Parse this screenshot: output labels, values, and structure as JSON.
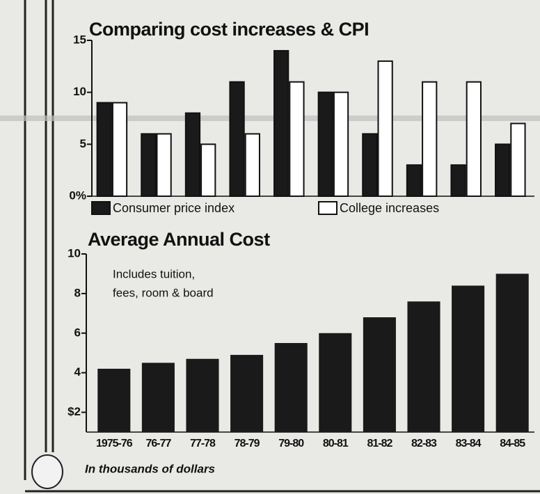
{
  "chart_data": [
    {
      "type": "bar",
      "title": "Comparing cost increases & CPI",
      "categories": [
        null,
        null,
        null,
        null,
        null,
        null,
        null,
        null,
        null,
        null
      ],
      "series": [
        {
          "name": "Consumer price index",
          "color": "#1a1a1a",
          "values": [
            9,
            6,
            8,
            11,
            14,
            10,
            6,
            3,
            3,
            5
          ]
        },
        {
          "name": "College increases",
          "color": "#ffffff",
          "values": [
            9,
            6,
            5,
            6,
            11,
            10,
            13,
            11,
            11,
            7
          ]
        }
      ],
      "ylim": [
        0,
        15
      ],
      "yticks": [
        {
          "value": 0,
          "label": "0%"
        },
        5,
        10,
        15
      ],
      "legend": "bottom",
      "grid": false
    },
    {
      "type": "bar",
      "title": "Average Annual Cost",
      "annotation": [
        "Includes tuition,",
        "fees, room & board"
      ],
      "categories": [
        "1975-76",
        "76-77",
        "77-78",
        "78-79",
        "79-80",
        "80-81",
        "81-82",
        "82-83",
        "83-84",
        "84-85"
      ],
      "values": [
        4.2,
        4.5,
        4.7,
        4.9,
        5.5,
        6.0,
        6.8,
        7.6,
        8.4,
        9.0
      ],
      "color": "#1a1a1a",
      "ylim": [
        1,
        10
      ],
      "yticks": [
        {
          "value": 2,
          "label": "$2"
        },
        4,
        6,
        8,
        10
      ],
      "x_label": "In thousands of dollars",
      "grid": false
    }
  ]
}
